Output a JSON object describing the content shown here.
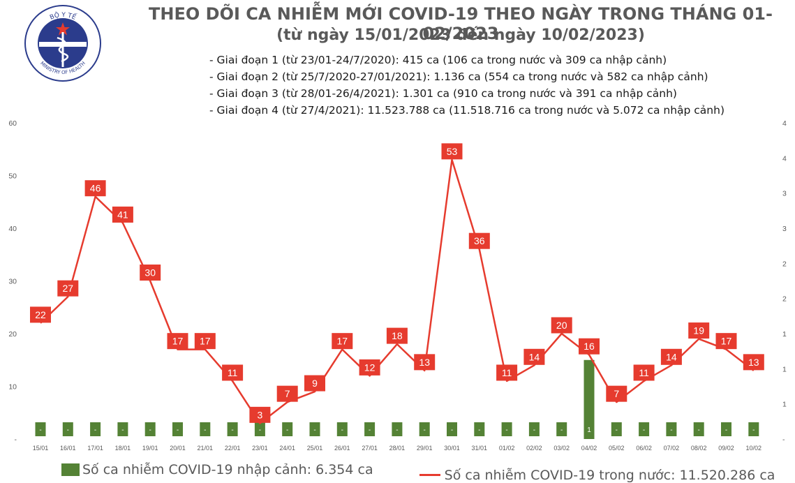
{
  "logo": {
    "top_text": "BỘ Y TẾ",
    "bottom_text": "MINISTRY OF HEALTH"
  },
  "header": {
    "title": "THEO DÕI CA NHIỄM MỚI COVID-19 THEO NGÀY TRONG THÁNG 01-02/2023",
    "subtitle": "(từ ngày 15/01/2023 đến ngày 10/02/2023)"
  },
  "phases": [
    "- Giai đoạn 1 (từ 23/01-24/7/2020): 415 ca (106 ca trong nước và 309 ca nhập cảnh)",
    "- Giai đoạn 2 (từ 25/7/2020-27/01/2021): 1.136 ca (554 ca trong nước và 582 ca nhập cảnh)",
    "- Giai đoạn 3 (từ 28/01-26/4/2021): 1.301 ca (910 ca trong nước và 391 ca nhập cảnh)",
    "- Giai đoạn 4 (từ 27/4/2021): 11.523.788 ca (11.518.716 ca trong nước và 5.072 ca nhập cảnh)"
  ],
  "chart_data": {
    "type": "bar+line",
    "categories": [
      "15/01",
      "16/01",
      "17/01",
      "18/01",
      "19/01",
      "20/01",
      "21/01",
      "22/01",
      "23/01",
      "24/01",
      "25/01",
      "26/01",
      "27/01",
      "28/01",
      "29/01",
      "30/01",
      "31/01",
      "01/02",
      "02/02",
      "03/02",
      "04/02",
      "05/02",
      "06/02",
      "07/02",
      "08/02",
      "09/02",
      "10/02"
    ],
    "series": [
      {
        "name": "Số ca nhiễm COVID-19 nhập cảnh: 6.354 ca",
        "type": "bar",
        "axis": "right",
        "color": "#548235",
        "values": [
          0,
          0,
          0,
          0,
          0,
          0,
          0,
          0,
          0,
          0,
          0,
          0,
          0,
          0,
          0,
          0,
          0,
          0,
          0,
          0,
          1,
          0,
          0,
          0,
          0,
          0,
          0
        ],
        "labels": [
          "-",
          "-",
          "-",
          "-",
          "-",
          "-",
          "-",
          "-",
          "-",
          "-",
          "-",
          "-",
          "-",
          "-",
          "-",
          "-",
          "-",
          "-",
          "-",
          "-",
          "1",
          "-",
          "-",
          "-",
          "-",
          "-",
          "-"
        ]
      },
      {
        "name": "Số ca nhiễm COVID-19 trong nước: 11.520.286 ca",
        "type": "line",
        "axis": "left",
        "color": "#e63b2e",
        "values": [
          22,
          27,
          46,
          41,
          30,
          17,
          17,
          11,
          3,
          7,
          9,
          17,
          12,
          18,
          13,
          53,
          36,
          11,
          14,
          20,
          16,
          7,
          11,
          14,
          19,
          17,
          13
        ]
      }
    ],
    "y_left": {
      "min": 0,
      "max": 60,
      "ticks": [
        "-",
        "10",
        "20",
        "30",
        "40",
        "50",
        "60"
      ]
    },
    "y_right": {
      "min": 0,
      "max": 4,
      "ticks": [
        "-",
        "1",
        "1",
        "1",
        "2",
        "2",
        "3",
        "3",
        "4",
        "4"
      ]
    },
    "grid": false,
    "legend_position": "bottom"
  }
}
